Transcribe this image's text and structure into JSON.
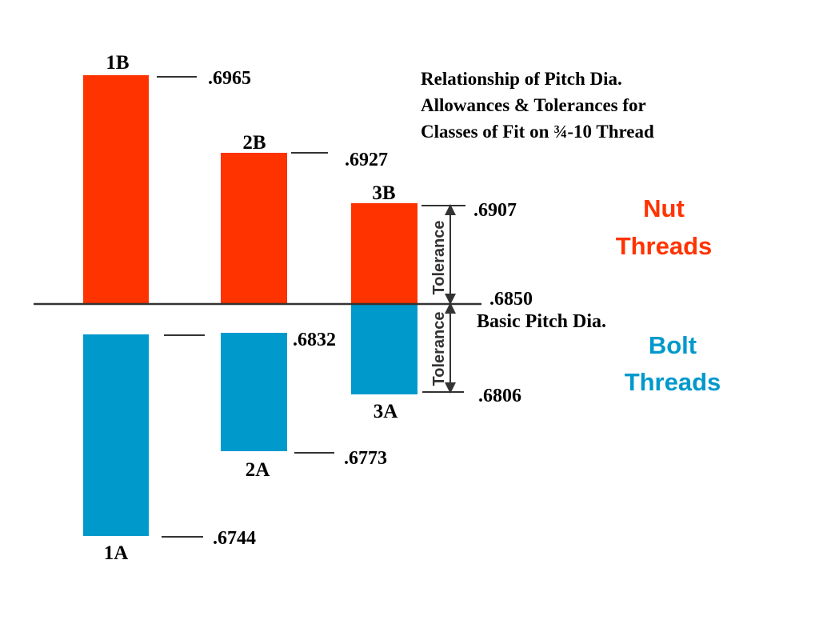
{
  "title": {
    "line1": "Relationship of Pitch Dia.",
    "line2": "Allowances & Tolerances for",
    "line3": "Classes of Fit on ¾-10 Thread"
  },
  "legend": {
    "nut_line1": "Nut",
    "nut_line2": "Threads",
    "bolt_line1": "Bolt",
    "bolt_line2": "Threads"
  },
  "colors": {
    "nut": "#ff3300",
    "bolt": "#0099cc",
    "line": "#333333"
  },
  "basic": {
    "value": ".6850",
    "label": "Basic Pitch Dia."
  },
  "tolerance_label": "Tolerance",
  "nut_classes": [
    {
      "name": "1B",
      "max": ".6965"
    },
    {
      "name": "2B",
      "max": ".6927"
    },
    {
      "name": "3B",
      "max": ".6907"
    }
  ],
  "bolt_classes": [
    {
      "name": "1A",
      "max": "",
      "min": ".6744"
    },
    {
      "name": "2A",
      "max": ".6832",
      "min": ".6773"
    },
    {
      "name": "3A",
      "max": "",
      "min": ".6806"
    }
  ]
}
